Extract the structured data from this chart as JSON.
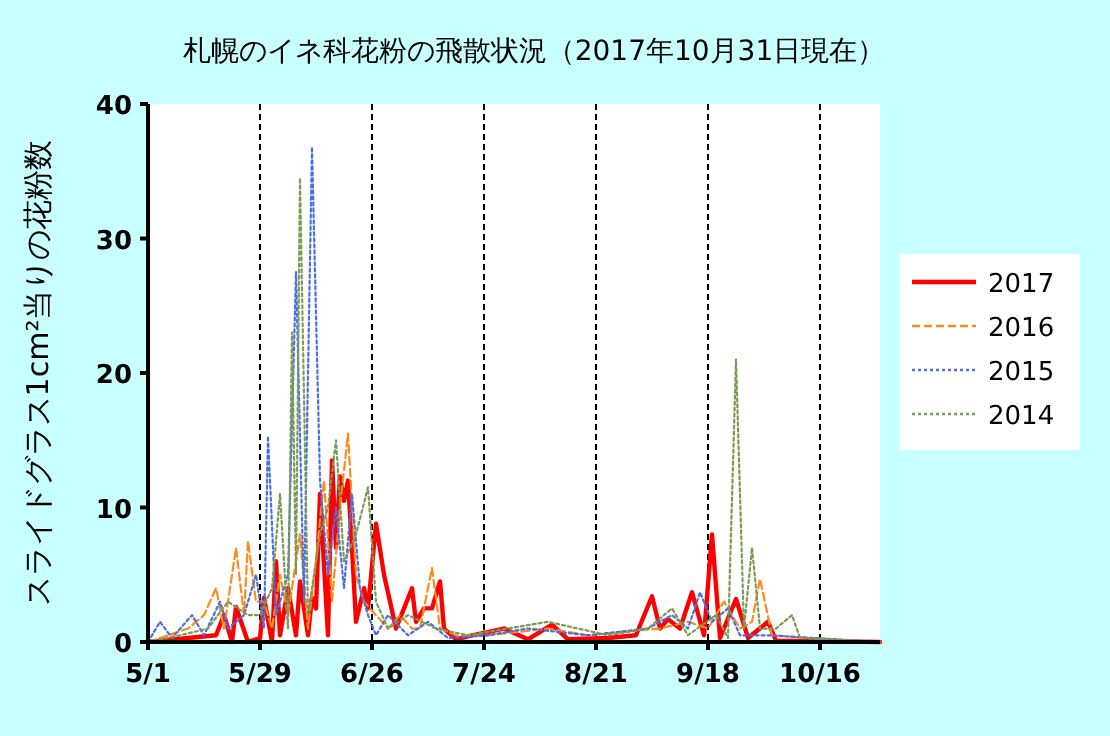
{
  "chart_data": {
    "type": "line",
    "title": "札幌のイネ科花粉の飛散状況（2017年10月31日現在）",
    "ylabel": "スライドグラス1cm²当りの花粉数",
    "xlim": [
      "--05-01",
      "--10-31"
    ],
    "xticks": [
      {
        "value": "--05-01",
        "label": "5/1"
      },
      {
        "value": "--05-29",
        "label": "5/29"
      },
      {
        "value": "--06-26",
        "label": "6/26"
      },
      {
        "value": "--07-24",
        "label": "7/24"
      },
      {
        "value": "--08-21",
        "label": "8/21"
      },
      {
        "value": "--09-18",
        "label": "9/18"
      },
      {
        "value": "--10-16",
        "label": "10/16"
      }
    ],
    "ylim": [
      0,
      40
    ],
    "yticks": [
      0,
      10,
      20,
      30,
      40
    ],
    "grid": "x",
    "legend": "right",
    "marker": "none",
    "series": [
      {
        "name": "2017",
        "color": "#ff0000",
        "line_style": "solid",
        "x": [
          "--05-01",
          "--05-11",
          "--05-18",
          "--05-20",
          "--05-22",
          "--05-23",
          "--05-26",
          "--05-29",
          "--05-30",
          "--06-01",
          "--06-02",
          "--06-03",
          "--06-05",
          "--06-07",
          "--06-08",
          "--06-10",
          "--06-11",
          "--06-12",
          "--06-13",
          "--06-15",
          "--06-16",
          "--06-17",
          "--06-18",
          "--06-19",
          "--06-20",
          "--06-21",
          "--06-22",
          "--06-24",
          "--06-25",
          "--06-27",
          "--06-29",
          "--07-02",
          "--07-04",
          "--07-06",
          "--07-07",
          "--07-09",
          "--07-11",
          "--07-13",
          "--07-14",
          "--07-17",
          "--07-21",
          "--07-29",
          "--08-04",
          "--08-10",
          "--08-14",
          "--08-24",
          "--08-31",
          "--09-04",
          "--09-06",
          "--09-08",
          "--09-11",
          "--09-14",
          "--09-17",
          "--09-19",
          "--09-21",
          "--09-25",
          "--09-28",
          "--10-03",
          "--10-05",
          "--10-31"
        ],
        "values": [
          0,
          0.3,
          0.5,
          2,
          0,
          2.6,
          0,
          0.3,
          3.3,
          0,
          6,
          0.5,
          4,
          0.5,
          4.5,
          0.5,
          3.3,
          2.5,
          11,
          0.5,
          13.5,
          7,
          12.3,
          10.5,
          12,
          7,
          1.5,
          4,
          2.5,
          8.8,
          5,
          1,
          2.5,
          4,
          1.5,
          2.5,
          2.5,
          4.5,
          1,
          0.2,
          0.5,
          1,
          0.2,
          1.3,
          0.2,
          0.3,
          0.5,
          3.4,
          1,
          1.7,
          1,
          3.7,
          0.5,
          8,
          0.3,
          3.2,
          0.3,
          1.5,
          0.1,
          0
        ]
      },
      {
        "name": "2016",
        "color": "#ff8c1a",
        "line_style": "dashed",
        "x": [
          "--05-01",
          "--05-06",
          "--05-11",
          "--05-15",
          "--05-18",
          "--05-20",
          "--05-23",
          "--05-25",
          "--05-26",
          "--05-28",
          "--05-30",
          "--06-01",
          "--06-03",
          "--06-05",
          "--06-08",
          "--06-10",
          "--06-12",
          "--06-14",
          "--06-16",
          "--06-18",
          "--06-20",
          "--06-22",
          "--06-24",
          "--06-27",
          "--06-30",
          "--07-03",
          "--07-06",
          "--07-08",
          "--07-11",
          "--07-13",
          "--07-17",
          "--07-25",
          "--08-09",
          "--08-19",
          "--08-29",
          "--09-06",
          "--09-13",
          "--09-18",
          "--09-22",
          "--09-26",
          "--09-29",
          "--10-01",
          "--10-04",
          "--10-13",
          "--10-31"
        ],
        "values": [
          0,
          0.5,
          1,
          2,
          4,
          1,
          7,
          2,
          7.5,
          3,
          3,
          1,
          5,
          2,
          8,
          1,
          6,
          12,
          3,
          10,
          15.5,
          5,
          3,
          2,
          1,
          2,
          1,
          1,
          5.5,
          1,
          0.5,
          0.5,
          1,
          0.5,
          0.8,
          1,
          1.5,
          1,
          3,
          1,
          1.5,
          4.7,
          0.5,
          0.3,
          0
        ]
      },
      {
        "name": "2015",
        "color": "#4a6fe3",
        "line_style": "dotted",
        "x": [
          "--05-01",
          "--05-04",
          "--05-07",
          "--05-12",
          "--05-15",
          "--05-19",
          "--05-21",
          "--05-25",
          "--05-28",
          "--05-30",
          "--05-31",
          "--06-02",
          "--06-05",
          "--06-07",
          "--06-09",
          "--06-11",
          "--06-13",
          "--06-15",
          "--06-17",
          "--06-19",
          "--06-21",
          "--06-23",
          "--06-25",
          "--06-27",
          "--06-30",
          "--07-05",
          "--07-10",
          "--07-15",
          "--07-25",
          "--08-04",
          "--08-19",
          "--09-03",
          "--09-09",
          "--09-13",
          "--09-16",
          "--09-19",
          "--09-23",
          "--09-26",
          "--10-03",
          "--10-31"
        ],
        "values": [
          0,
          1.5,
          0.3,
          2,
          0.5,
          3,
          1,
          2,
          5,
          1,
          15.3,
          2,
          5,
          27.5,
          3,
          36.8,
          12,
          5,
          10,
          4,
          11,
          4,
          2,
          0.5,
          2,
          0.5,
          1.5,
          0.3,
          0.5,
          1,
          0.5,
          1,
          2,
          1,
          3.7,
          1.5,
          2.5,
          0.5,
          0.5,
          0
        ]
      },
      {
        "name": "2014",
        "color": "#7d9a55",
        "line_style": "dotted",
        "x": [
          "--05-01",
          "--05-09",
          "--05-16",
          "--05-21",
          "--05-26",
          "--05-29",
          "--06-01",
          "--06-03",
          "--06-05",
          "--06-06",
          "--06-07",
          "--06-08",
          "--06-10",
          "--06-13",
          "--06-15",
          "--06-17",
          "--06-19",
          "--06-22",
          "--06-25",
          "--06-27",
          "--06-30",
          "--07-05",
          "--07-12",
          "--07-20",
          "--08-09",
          "--08-24",
          "--09-03",
          "--09-09",
          "--09-13",
          "--09-20",
          "--09-23",
          "--09-25",
          "--09-27",
          "--09-29",
          "--10-01",
          "--10-05",
          "--10-09",
          "--10-11",
          "--10-31"
        ],
        "values": [
          0,
          0.5,
          1,
          3,
          2,
          2,
          4,
          11,
          1,
          23,
          5,
          34.5,
          2,
          8,
          10,
          15,
          6,
          8,
          11.5,
          3,
          1,
          2,
          1,
          0.5,
          1.5,
          0.5,
          1,
          2.5,
          0.5,
          2,
          0.3,
          21,
          1,
          7,
          1,
          1,
          2,
          0.3,
          0
        ]
      }
    ]
  }
}
